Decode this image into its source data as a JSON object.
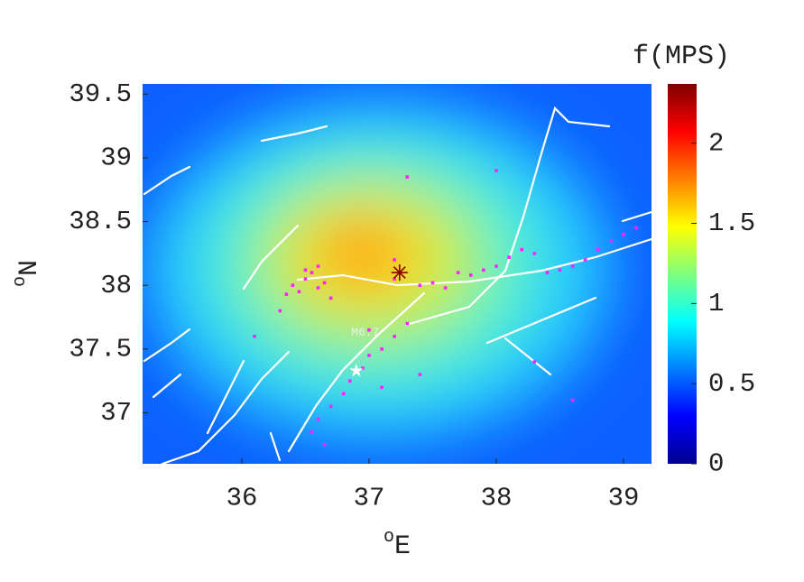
{
  "chart_data": {
    "type": "scatter",
    "xlabel_sup": "o",
    "xlabel": "E",
    "ylabel_sup": "o",
    "ylabel": "N",
    "xlim": [
      35.22,
      39.22
    ],
    "xticks": [
      36,
      37,
      38,
      39
    ],
    "ylim": [
      36.6,
      39.58
    ],
    "yticks": [
      37,
      37.5,
      38,
      38.5,
      39,
      39.5
    ],
    "colorbar": {
      "title": "f(MPS)",
      "lim": [
        0,
        2.37
      ],
      "ticks": [
        0,
        0.5,
        1,
        1.5,
        2
      ],
      "colormap": "jet"
    },
    "series": [
      {
        "color": "#ff22ff",
        "x": [
          36.4,
          36.45,
          36.5,
          36.55,
          36.6,
          36.35,
          36.5,
          36.65,
          36.7,
          36.6,
          37.2,
          37.4,
          37.5,
          37.6,
          37.7,
          37.8,
          37.9,
          38.0,
          38.1,
          38.2,
          38.3,
          38.4,
          38.5,
          38.6,
          38.7,
          38.8,
          38.9,
          39.0,
          39.1,
          37.3,
          37.2,
          37.1,
          37.0,
          36.95,
          36.85,
          36.8,
          36.7,
          36.6,
          36.55,
          36.65,
          37.4,
          37.1,
          37.3,
          37.2,
          36.3,
          36.1,
          38.0,
          38.3,
          37.0,
          38.6
        ],
        "y": [
          38.0,
          37.95,
          38.05,
          38.1,
          37.98,
          37.93,
          38.12,
          38.02,
          37.9,
          38.15,
          38.05,
          38.0,
          38.02,
          37.98,
          38.1,
          38.08,
          38.12,
          38.15,
          38.22,
          38.28,
          38.25,
          38.1,
          38.12,
          38.15,
          38.2,
          38.28,
          38.35,
          38.4,
          38.45,
          37.7,
          37.6,
          37.5,
          37.45,
          37.35,
          37.25,
          37.15,
          37.05,
          36.95,
          36.85,
          36.75,
          37.3,
          37.2,
          38.85,
          38.2,
          37.8,
          37.6,
          38.9,
          37.4,
          37.65,
          37.1
        ]
      }
    ],
    "markers": [
      {
        "shape": "star",
        "x": 36.9,
        "y": 37.33,
        "color": "#ffffff"
      },
      {
        "shape": "asterisk",
        "x": 37.24,
        "y": 38.1,
        "color": "#8b0000"
      }
    ],
    "annotation": {
      "text": "M6.7",
      "x": 36.97,
      "y": 37.63
    }
  }
}
